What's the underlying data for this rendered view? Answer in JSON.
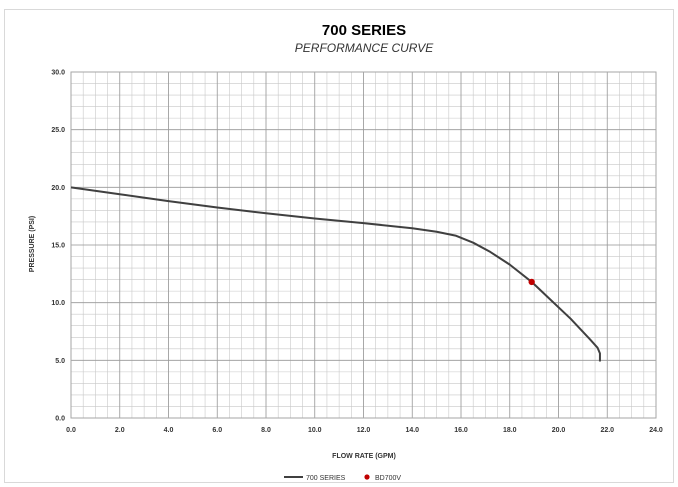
{
  "chart_data": {
    "type": "line",
    "title": "700 SERIES",
    "subtitle": "PERFORMANCE CURVE",
    "xlabel": "FLOW RATE (GPM)",
    "ylabel": "PRESSURE (PSI)",
    "xlim": [
      0,
      24
    ],
    "ylim": [
      0,
      30
    ],
    "x_ticks": [
      "0.0",
      "2.0",
      "4.0",
      "6.0",
      "8.0",
      "10.0",
      "12.0",
      "14.0",
      "16.0",
      "18.0",
      "20.0",
      "22.0",
      "24.0"
    ],
    "y_ticks": [
      "0.0",
      "5.0",
      "10.0",
      "15.0",
      "20.0",
      "25.0",
      "30.0"
    ],
    "grid": true,
    "legend_position": "bottom",
    "series": [
      {
        "name": "700 SERIES",
        "kind": "line",
        "color": "#404040",
        "x": [
          0.0,
          2.0,
          4.0,
          6.0,
          8.0,
          10.0,
          12.0,
          14.0,
          15.0,
          15.8,
          16.5,
          17.2,
          18.0,
          18.9,
          19.5,
          20.5,
          21.3,
          21.6,
          21.7,
          21.7
        ],
        "y": [
          20.0,
          19.4,
          18.8,
          18.25,
          17.75,
          17.3,
          16.9,
          16.45,
          16.15,
          15.8,
          15.2,
          14.4,
          13.3,
          11.8,
          10.6,
          8.6,
          6.8,
          6.1,
          5.6,
          4.9
        ]
      },
      {
        "name": "BD700V",
        "kind": "point",
        "color": "#c00000",
        "x": [
          18.9
        ],
        "y": [
          11.8
        ]
      }
    ]
  }
}
